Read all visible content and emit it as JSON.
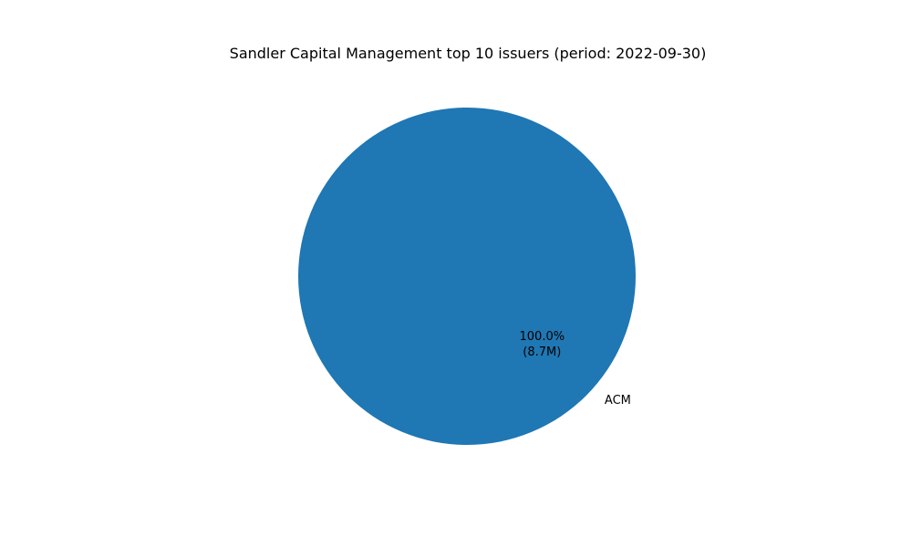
{
  "chart_data": {
    "type": "pie",
    "title": "Sandler Capital Management top 10 issuers (period: 2022-09-30)",
    "slices": [
      {
        "label": "ACM",
        "value": 8.7,
        "percent_label": "100.0%",
        "value_label": "(8.7M)",
        "color": "#1f77b4"
      }
    ]
  }
}
